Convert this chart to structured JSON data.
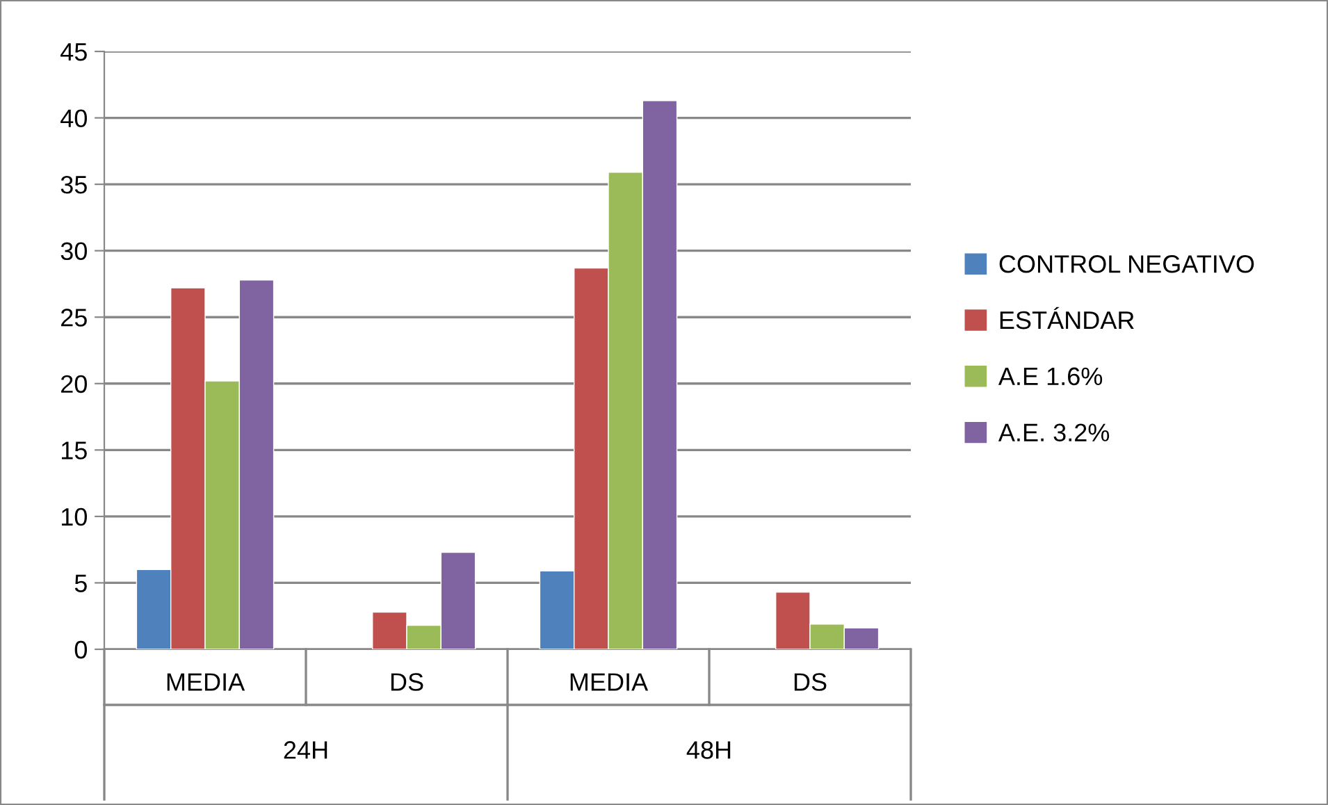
{
  "chart_data": {
    "type": "bar",
    "categories": [
      "MEDIA",
      "DS",
      "MEDIA",
      "DS"
    ],
    "annotations": [
      "24H",
      "48H"
    ],
    "series": [
      {
        "name": "CONTROL NEGATIVO",
        "color": "#4f81bd",
        "values": [
          6.0,
          null,
          5.9,
          null
        ]
      },
      {
        "name": "ESTÁNDAR",
        "color": "#c0504d",
        "values": [
          27.2,
          2.8,
          28.7,
          4.3
        ]
      },
      {
        "name": "A.E 1.6%",
        "color": "#9bbb59",
        "values": [
          20.2,
          1.8,
          35.9,
          1.9
        ]
      },
      {
        "name": "A.E. 3.2%",
        "color": "#8064a2",
        "values": [
          27.8,
          7.3,
          41.3,
          1.6
        ]
      }
    ],
    "ylim": [
      0,
      45
    ],
    "yticks": [
      0,
      5,
      10,
      15,
      20,
      25,
      30,
      35,
      40,
      45
    ],
    "grid": "y",
    "legend": "right"
  }
}
